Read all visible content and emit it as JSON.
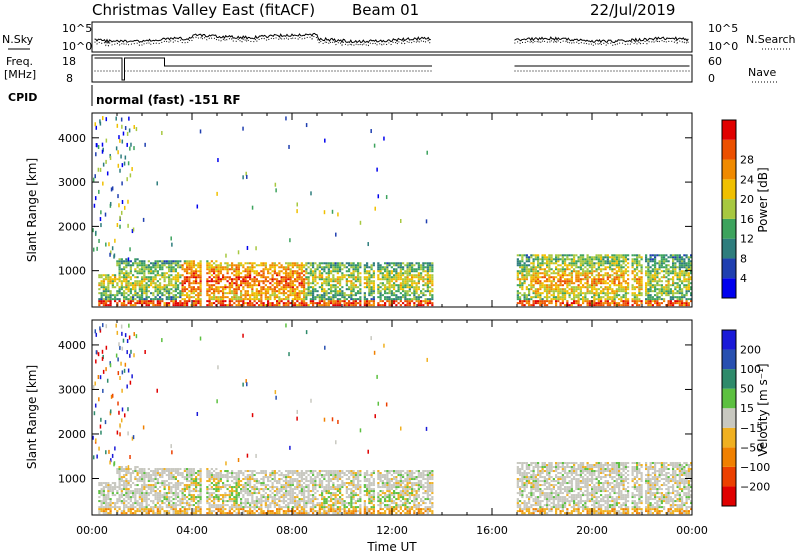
{
  "header": {
    "station": "Christmas Valley East (fitACF)",
    "beam": "Beam 01",
    "date": "22/Jul/2019"
  },
  "strips": {
    "nsky_label": "N.Sky",
    "nsearch_label": "N.Search",
    "noise_top_tick": "10^5",
    "noise_bottom_tick": "10^0",
    "freq_label_line1": "Freq.",
    "freq_label_line2": "[MHz]",
    "freq_ticks": [
      "18",
      "8"
    ],
    "nave_label": "Nave",
    "nave_ticks": [
      "60",
      "0"
    ],
    "cpid_label": "CPID",
    "cpid_value": "normal (fast) -151 RF"
  },
  "chart_data": [
    {
      "type": "heatmap",
      "name": "power",
      "xlabel": "Time UT",
      "ylabel": "Slant Range [km]",
      "x_ticks": [
        "00:00",
        "04:00",
        "08:00",
        "12:00",
        "16:00",
        "20:00",
        "00:00"
      ],
      "xlim_hours": [
        0,
        24
      ],
      "y_ticks": [
        1000,
        2000,
        3000,
        4000
      ],
      "ylim_km": [
        180,
        4560
      ],
      "colorbar": {
        "label": "Power [dB]",
        "ticks": [
          "4",
          "8",
          "12",
          "16",
          "20",
          "24",
          "28"
        ],
        "range": [
          0,
          32
        ],
        "colors": [
          "#0000ee",
          "#1f3fb0",
          "#2e7d7d",
          "#3da35d",
          "#a7c840",
          "#f0c000",
          "#f08a00",
          "#ec5000",
          "#e00000"
        ]
      },
      "data_gap_hours": [
        13.6,
        16.9
      ]
    },
    {
      "type": "heatmap",
      "name": "velocity",
      "xlabel": "Time UT",
      "ylabel": "Slant Range [km]",
      "x_ticks": [
        "00:00",
        "04:00",
        "08:00",
        "12:00",
        "16:00",
        "20:00",
        "00:00"
      ],
      "xlim_hours": [
        0,
        24
      ],
      "y_ticks": [
        1000,
        2000,
        3000,
        4000
      ],
      "ylim_km": [
        180,
        4560
      ],
      "colorbar": {
        "label": "Velocity [m s⁻¹]",
        "ticks": [
          "200",
          "100",
          "50",
          "15",
          "−15",
          "−50",
          "−100",
          "−200"
        ],
        "colors": [
          "#1a1ad8",
          "#2850b0",
          "#2e8a6a",
          "#5cc040",
          "#c8c8c0",
          "#f0b020",
          "#f08000",
          "#ec4000",
          "#e00000"
        ]
      },
      "data_gap_hours": [
        13.6,
        16.9
      ]
    }
  ]
}
